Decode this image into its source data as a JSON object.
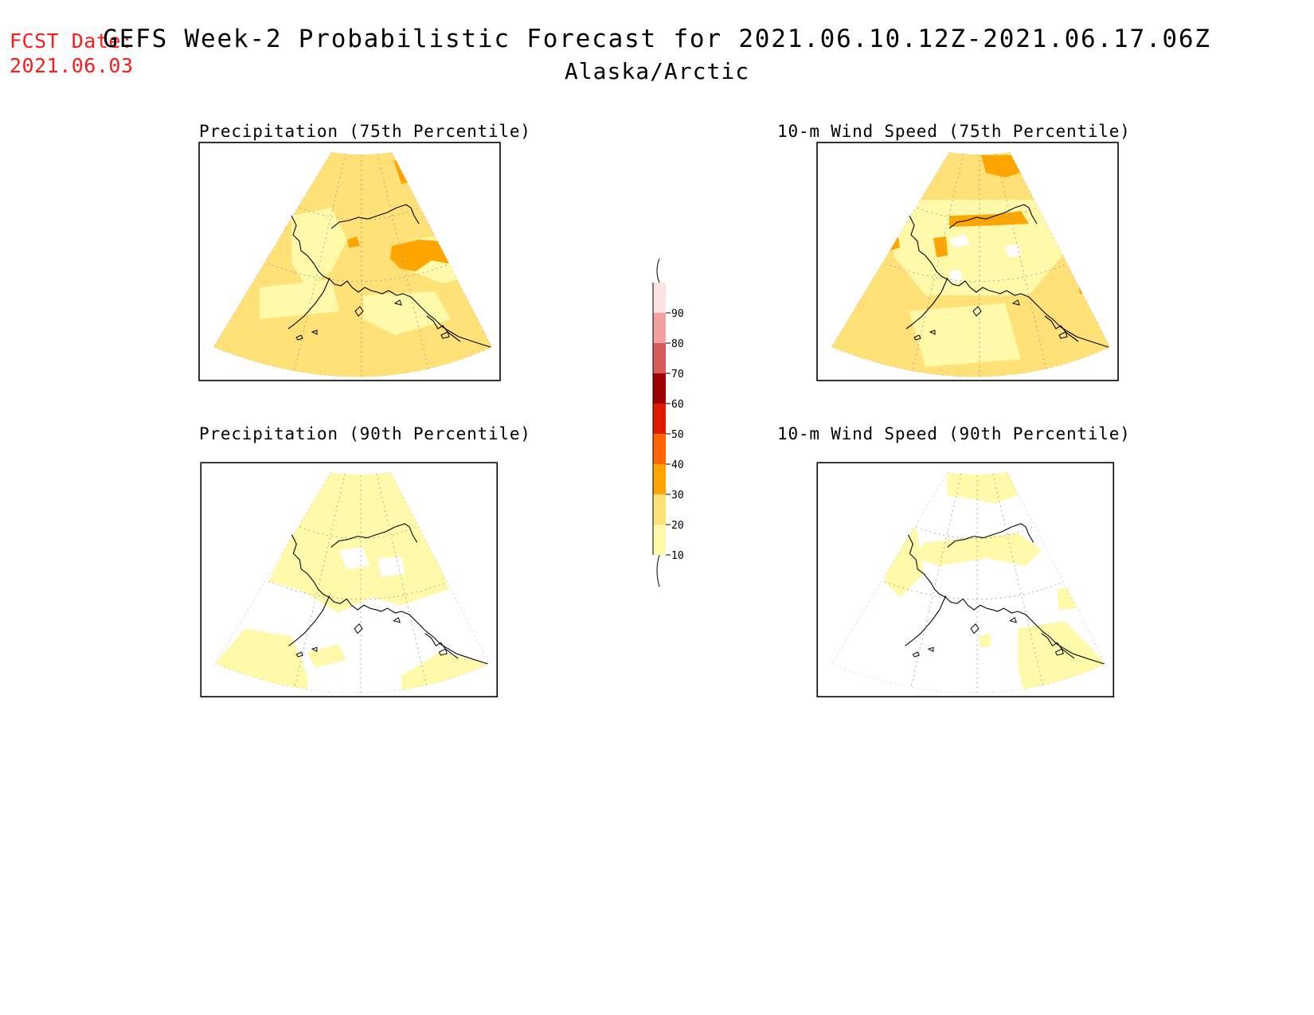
{
  "header": {
    "fcst_label": "FCST Date:",
    "fcst_date": "2021.06.03",
    "title": "GEFS Week-2 Probabilistic Forecast for 2021.06.10.12Z-2021.06.17.06Z",
    "region": "Alaska/Arctic"
  },
  "panels": [
    {
      "id": "precip-75",
      "title": "Precipitation (75th Percentile)",
      "variable": "precipitation",
      "percentile": 75
    },
    {
      "id": "wind-75",
      "title": "10-m Wind Speed (75th Percentile)",
      "variable": "wind-speed",
      "percentile": 75
    },
    {
      "id": "precip-90",
      "title": "Precipitation (90th Percentile)",
      "variable": "precipitation",
      "percentile": 90
    },
    {
      "id": "wind-90",
      "title": "10-m Wind Speed (90th Percentile)",
      "variable": "wind-speed",
      "percentile": 90
    }
  ],
  "colorbar": {
    "levels": [
      "10",
      "20",
      "30",
      "40",
      "50",
      "60",
      "70",
      "80",
      "90"
    ],
    "colors": [
      "#fffaaa",
      "#ffe178",
      "#ffa500",
      "#ff6600",
      "#e01a00",
      "#a00000",
      "#d65c5c",
      "#f2a0a0",
      "#fde2e2"
    ],
    "edge_colors": {
      "below": "#ffffff",
      "above": "#fff5f5"
    }
  },
  "map_colors": {
    "white": "#ffffff",
    "light_yellow": "#fffaaa",
    "yellow": "#ffe178",
    "orange": "#ffa500",
    "dark_orange": "#ff6600",
    "coast": "#000000",
    "grid": "#999999"
  }
}
